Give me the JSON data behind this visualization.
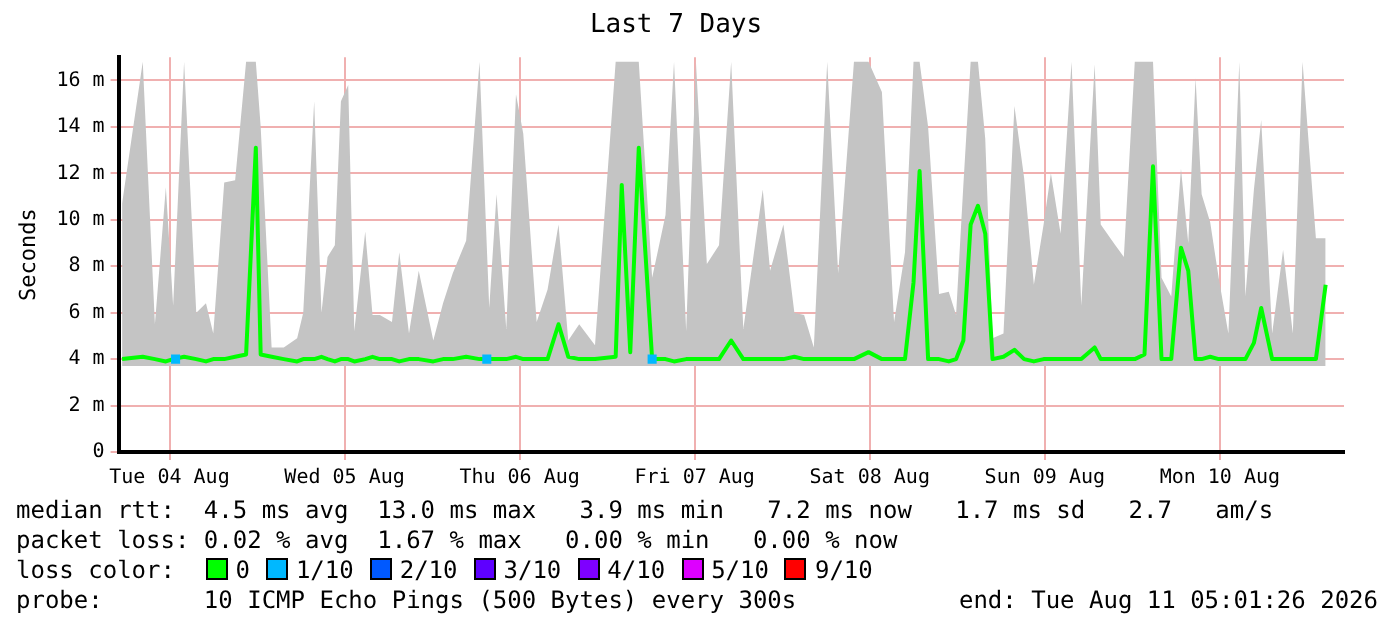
{
  "chart_data": {
    "type": "line",
    "title": "Last 7 Days",
    "ylabel": "Seconds",
    "x": [
      "2026-08-04T05:30",
      "2026-08-04T08:20",
      "2026-08-04T10:00",
      "2026-08-04T11:30",
      "2026-08-04T12:30",
      "2026-08-04T14:00",
      "2026-08-04T15:40",
      "2026-08-04T17:00",
      "2026-08-04T18:00",
      "2026-08-04T19:30",
      "2026-08-04T21:00",
      "2026-08-04T22:30",
      "2026-08-04T23:50",
      "2026-08-05T00:30",
      "2026-08-05T02:00",
      "2026-08-05T03:40",
      "2026-08-05T05:30",
      "2026-08-05T06:20",
      "2026-08-05T07:50",
      "2026-08-05T08:50",
      "2026-08-05T09:40",
      "2026-08-05T10:40",
      "2026-08-05T11:30",
      "2026-08-05T12:30",
      "2026-08-05T13:20",
      "2026-08-05T14:50",
      "2026-08-05T15:50",
      "2026-08-05T16:50",
      "2026-08-05T18:30",
      "2026-08-05T19:30",
      "2026-08-05T20:50",
      "2026-08-05T22:10",
      "2026-08-06T00:10",
      "2026-08-06T01:30",
      "2026-08-06T02:50",
      "2026-08-06T04:40",
      "2026-08-06T06:30",
      "2026-08-06T07:50",
      "2026-08-06T08:50",
      "2026-08-06T10:10",
      "2026-08-06T11:30",
      "2026-08-06T12:30",
      "2026-08-06T14:20",
      "2026-08-06T15:50",
      "2026-08-06T17:20",
      "2026-08-06T18:40",
      "2026-08-06T20:10",
      "2026-08-06T22:20",
      "2026-08-07T01:10",
      "2026-08-07T02:00",
      "2026-08-07T03:10",
      "2026-08-07T04:20",
      "2026-08-07T06:10",
      "2026-08-07T08:00",
      "2026-08-07T09:10",
      "2026-08-07T10:50",
      "2026-08-07T12:10",
      "2026-08-07T13:40",
      "2026-08-07T15:20",
      "2026-08-07T17:00",
      "2026-08-07T18:40",
      "2026-08-07T21:20",
      "2026-08-07T22:20",
      "2026-08-08T00:10",
      "2026-08-08T01:40",
      "2026-08-08T03:00",
      "2026-08-08T04:20",
      "2026-08-08T06:10",
      "2026-08-08T07:40",
      "2026-08-08T09:50",
      "2026-08-08T11:50",
      "2026-08-08T13:40",
      "2026-08-08T15:20",
      "2026-08-08T16:50",
      "2026-08-08T18:00",
      "2026-08-08T18:50",
      "2026-08-08T20:00",
      "2026-08-08T21:30",
      "2026-08-08T22:50",
      "2026-08-08T23:50",
      "2026-08-09T00:50",
      "2026-08-09T01:50",
      "2026-08-09T02:50",
      "2026-08-09T03:50",
      "2026-08-09T04:50",
      "2026-08-09T06:20",
      "2026-08-09T07:50",
      "2026-08-09T09:10",
      "2026-08-09T10:30",
      "2026-08-09T11:50",
      "2026-08-09T12:50",
      "2026-08-09T14:10",
      "2026-08-09T15:40",
      "2026-08-09T17:00",
      "2026-08-09T18:50",
      "2026-08-09T19:40",
      "2026-08-09T21:40",
      "2026-08-09T22:50",
      "2026-08-10T00:20",
      "2026-08-10T01:40",
      "2026-08-10T02:50",
      "2026-08-10T04:00",
      "2026-08-10T05:20",
      "2026-08-10T06:40",
      "2026-08-10T07:40",
      "2026-08-10T08:40",
      "2026-08-10T09:30",
      "2026-08-10T10:40",
      "2026-08-10T11:50",
      "2026-08-10T13:10",
      "2026-08-10T14:40",
      "2026-08-10T15:30",
      "2026-08-10T16:40",
      "2026-08-10T17:40",
      "2026-08-10T19:10",
      "2026-08-10T20:40",
      "2026-08-10T22:00",
      "2026-08-10T23:20",
      "2026-08-11T01:10",
      "2026-08-11T02:30"
    ],
    "series": [
      {
        "name": "0",
        "color": "#00ff00",
        "values": [
          4.0,
          4.1,
          4.0,
          3.9,
          4.0,
          4.1,
          4.0,
          3.9,
          4.0,
          4.0,
          4.1,
          4.2,
          13.1,
          4.2,
          4.1,
          4.0,
          3.9,
          4.0,
          4.0,
          4.1,
          4.0,
          3.9,
          4.0,
          4.0,
          3.9,
          4.0,
          4.1,
          4.0,
          4.0,
          3.9,
          4.0,
          4.0,
          3.9,
          4.0,
          4.0,
          4.1,
          4.0,
          4.0,
          4.0,
          4.0,
          4.1,
          4.0,
          4.0,
          4.0,
          5.5,
          4.1,
          4.0,
          4.0,
          4.1,
          11.5,
          4.3,
          13.1,
          4.0,
          4.0,
          3.9,
          4.0,
          4.0,
          4.0,
          4.0,
          4.8,
          4.0,
          4.0,
          4.0,
          4.0,
          4.1,
          4.0,
          4.0,
          4.0,
          4.0,
          4.0,
          4.3,
          4.0,
          4.0,
          4.0,
          7.3,
          12.1,
          4.0,
          4.0,
          3.9,
          4.0,
          4.8,
          9.8,
          10.6,
          9.4,
          4.0,
          4.1,
          4.4,
          4.0,
          3.9,
          4.0,
          4.0,
          4.0,
          4.0,
          4.0,
          4.5,
          4.0,
          4.0,
          4.0,
          4.0,
          4.2,
          12.3,
          4.0,
          4.0,
          8.8,
          7.8,
          4.0,
          4.0,
          4.1,
          4.0,
          4.0,
          4.0,
          4.0,
          4.7,
          6.2,
          4.0,
          4.0,
          4.0,
          4.0,
          4.0,
          7.2
        ],
        "lower": [
          3.7,
          3.7,
          3.7,
          3.7,
          3.7,
          3.7,
          3.7,
          3.7,
          3.7,
          3.7,
          3.7,
          3.7,
          3.7,
          3.7,
          3.7,
          3.7,
          3.7,
          3.7,
          3.7,
          3.7,
          3.7,
          3.7,
          3.7,
          3.7,
          3.7,
          3.7,
          3.7,
          3.7,
          3.7,
          3.7,
          3.7,
          3.7,
          3.7,
          3.7,
          3.7,
          3.7,
          3.7,
          3.7,
          3.7,
          3.7,
          3.7,
          3.7,
          3.7,
          3.7,
          3.7,
          3.7,
          3.7,
          3.7,
          3.7,
          3.7,
          3.7,
          3.7,
          3.7,
          3.7,
          3.7,
          3.7,
          3.7,
          3.7,
          3.7,
          3.7,
          3.7,
          3.7,
          3.7,
          3.7,
          3.7,
          3.7,
          3.7,
          3.7,
          3.7,
          3.7,
          3.7,
          3.7,
          3.7,
          3.7,
          3.7,
          3.7,
          3.7,
          3.7,
          3.7,
          3.7,
          3.7,
          3.7,
          3.7,
          3.7,
          3.7,
          3.7,
          3.7,
          3.7,
          3.7,
          3.7,
          3.7,
          3.7,
          3.7,
          3.7,
          3.7,
          3.7,
          3.7,
          3.7,
          3.7,
          3.7,
          3.7,
          3.7,
          3.7,
          3.7,
          3.7,
          3.7,
          3.7,
          3.7,
          3.7,
          3.7,
          3.7,
          3.7,
          3.7,
          3.7,
          3.7,
          3.7,
          3.7,
          3.7,
          3.7,
          3.7
        ],
        "upper": [
          10.7,
          16.8,
          5.5,
          11.4,
          6.3,
          16.8,
          6.0,
          6.4,
          5.1,
          11.6,
          11.7,
          16.8,
          16.8,
          14.0,
          4.5,
          4.5,
          4.9,
          6.0,
          15.1,
          6.0,
          8.4,
          8.9,
          15.1,
          15.8,
          5.2,
          9.5,
          5.9,
          5.9,
          5.6,
          8.6,
          5.1,
          7.8,
          4.8,
          6.4,
          7.7,
          9.1,
          16.8,
          6.2,
          11.1,
          5.3,
          15.4,
          13.7,
          5.6,
          7.0,
          9.8,
          4.8,
          5.5,
          4.6,
          16.8,
          16.8,
          16.8,
          16.8,
          7.5,
          10.2,
          16.8,
          5.2,
          16.8,
          8.1,
          8.9,
          16.8,
          5.3,
          11.3,
          7.8,
          9.8,
          6.0,
          5.9,
          4.5,
          16.8,
          7.7,
          16.8,
          16.8,
          15.5,
          5.6,
          8.6,
          16.8,
          16.8,
          14.0,
          6.8,
          6.9,
          5.9,
          11.5,
          16.8,
          16.8,
          13.5,
          4.9,
          5.1,
          14.9,
          11.8,
          7.2,
          9.8,
          12.0,
          9.4,
          16.8,
          6.3,
          16.7,
          9.8,
          8.9,
          8.4,
          16.8,
          16.8,
          16.8,
          7.5,
          6.7,
          12.2,
          9.0,
          16.1,
          11.1,
          9.9,
          7.5,
          5.1,
          16.8,
          6.7,
          11.3,
          14.3,
          5.1,
          8.7,
          5.1,
          16.8,
          9.2,
          9.2
        ]
      },
      {
        "name": "1/10",
        "color": "#00b8ff",
        "type": "scatter",
        "marker": "square",
        "x": [
          "2026-08-04T12:50",
          "2026-08-06T07:30",
          "2026-08-07T06:10"
        ],
        "values": [
          4.0,
          4.0,
          4.0
        ]
      },
      {
        "name": "2/10",
        "color": "#0059ff",
        "values": [
          null,
          null,
          null,
          null,
          null,
          null,
          null,
          null,
          null,
          null,
          null,
          null,
          null,
          null,
          null,
          null,
          null,
          null,
          null,
          null,
          null,
          null,
          null,
          null,
          null,
          null,
          null,
          null,
          null,
          null,
          null,
          null,
          null,
          null,
          null,
          null,
          null,
          null,
          null,
          null,
          null,
          null,
          null,
          null,
          null,
          null,
          null,
          null,
          null,
          null,
          null,
          null,
          null,
          null,
          null,
          null,
          null,
          null,
          null,
          null,
          null,
          null,
          null,
          null,
          null,
          null,
          null,
          null,
          null,
          null,
          null,
          null,
          null,
          null,
          null,
          null,
          null,
          null,
          null,
          null,
          null,
          null,
          null,
          null,
          null,
          null,
          null,
          null,
          null,
          null,
          null,
          null,
          null,
          null,
          null,
          null,
          null,
          null,
          null,
          null,
          null,
          null,
          null,
          null,
          null,
          null,
          null,
          null,
          null,
          null,
          null,
          null,
          null,
          null,
          null,
          null,
          null,
          null,
          null,
          null
        ]
      },
      {
        "name": "3/10",
        "color": "#5e00ff",
        "values": [
          null,
          null,
          null,
          null,
          null,
          null,
          null,
          null,
          null,
          null,
          null,
          null,
          null,
          null,
          null,
          null,
          null,
          null,
          null,
          null,
          null,
          null,
          null,
          null,
          null,
          null,
          null,
          null,
          null,
          null,
          null,
          null,
          null,
          null,
          null,
          null,
          null,
          null,
          null,
          null,
          null,
          null,
          null,
          null,
          null,
          null,
          null,
          null,
          null,
          null,
          null,
          null,
          null,
          null,
          null,
          null,
          null,
          null,
          null,
          null,
          null,
          null,
          null,
          null,
          null,
          null,
          null,
          null,
          null,
          null,
          null,
          null,
          null,
          null,
          null,
          null,
          null,
          null,
          null,
          null,
          null,
          null,
          null,
          null,
          null,
          null,
          null,
          null,
          null,
          null,
          null,
          null,
          null,
          null,
          null,
          null,
          null,
          null,
          null,
          null,
          null,
          null,
          null,
          null,
          null,
          null,
          null,
          null,
          null,
          null,
          null,
          null,
          null,
          null,
          null,
          null,
          null,
          null,
          null,
          null
        ]
      },
      {
        "name": "4/10",
        "color": "#7e00ff",
        "values": [
          null,
          null,
          null,
          null,
          null,
          null,
          null,
          null,
          null,
          null,
          null,
          null,
          null,
          null,
          null,
          null,
          null,
          null,
          null,
          null,
          null,
          null,
          null,
          null,
          null,
          null,
          null,
          null,
          null,
          null,
          null,
          null,
          null,
          null,
          null,
          null,
          null,
          null,
          null,
          null,
          null,
          null,
          null,
          null,
          null,
          null,
          null,
          null,
          null,
          null,
          null,
          null,
          null,
          null,
          null,
          null,
          null,
          null,
          null,
          null,
          null,
          null,
          null,
          null,
          null,
          null,
          null,
          null,
          null,
          null,
          null,
          null,
          null,
          null,
          null,
          null,
          null,
          null,
          null,
          null,
          null,
          null,
          null,
          null,
          null,
          null,
          null,
          null,
          null,
          null,
          null,
          null,
          null,
          null,
          null,
          null,
          null,
          null,
          null,
          null,
          null,
          null,
          null,
          null,
          null,
          null,
          null,
          null,
          null,
          null,
          null,
          null,
          null,
          null,
          null,
          null,
          null,
          null,
          null,
          null
        ]
      },
      {
        "name": "5/10",
        "color": "#dd00ff",
        "values": [
          null,
          null,
          null,
          null,
          null,
          null,
          null,
          null,
          null,
          null,
          null,
          null,
          null,
          null,
          null,
          null,
          null,
          null,
          null,
          null,
          null,
          null,
          null,
          null,
          null,
          null,
          null,
          null,
          null,
          null,
          null,
          null,
          null,
          null,
          null,
          null,
          null,
          null,
          null,
          null,
          null,
          null,
          null,
          null,
          null,
          null,
          null,
          null,
          null,
          null,
          null,
          null,
          null,
          null,
          null,
          null,
          null,
          null,
          null,
          null,
          null,
          null,
          null,
          null,
          null,
          null,
          null,
          null,
          null,
          null,
          null,
          null,
          null,
          null,
          null,
          null,
          null,
          null,
          null,
          null,
          null,
          null,
          null,
          null,
          null,
          null,
          null,
          null,
          null,
          null,
          null,
          null,
          null,
          null,
          null,
          null,
          null,
          null,
          null,
          null,
          null,
          null,
          null,
          null,
          null,
          null,
          null,
          null,
          null,
          null,
          null,
          null,
          null,
          null,
          null,
          null,
          null,
          null,
          null,
          null
        ]
      },
      {
        "name": "9/10",
        "color": "#ff0000",
        "values": [
          null,
          null,
          null,
          null,
          null,
          null,
          null,
          null,
          null,
          null,
          null,
          null,
          null,
          null,
          null,
          null,
          null,
          null,
          null,
          null,
          null,
          null,
          null,
          null,
          null,
          null,
          null,
          null,
          null,
          null,
          null,
          null,
          null,
          null,
          null,
          null,
          null,
          null,
          null,
          null,
          null,
          null,
          null,
          null,
          null,
          null,
          null,
          null,
          null,
          null,
          null,
          null,
          null,
          null,
          null,
          null,
          null,
          null,
          null,
          null,
          null,
          null,
          null,
          null,
          null,
          null,
          null,
          null,
          null,
          null,
          null,
          null,
          null,
          null,
          null,
          null,
          null,
          null,
          null,
          null,
          null,
          null,
          null,
          null,
          null,
          null,
          null,
          null,
          null,
          null,
          null,
          null,
          null,
          null,
          null,
          null,
          null,
          null,
          null,
          null,
          null,
          null,
          null,
          null,
          null,
          null,
          null,
          null,
          null,
          null,
          null,
          null,
          null,
          null,
          null,
          null,
          null,
          null,
          null,
          null
        ]
      }
    ],
    "marker": "none",
    "legend": "bottom",
    "legend_title": "loss color:",
    "xlim": [
      "2026-08-04T05:01",
      "2026-08-11T05:01"
    ],
    "xticks": [
      {
        "value": "2026-08-04T12:00",
        "label": "Tue 04 Aug"
      },
      {
        "value": "2026-08-05T12:00",
        "label": "Wed 05 Aug"
      },
      {
        "value": "2026-08-06T12:00",
        "label": "Thu 06 Aug"
      },
      {
        "value": "2026-08-07T12:00",
        "label": "Fri 07 Aug"
      },
      {
        "value": "2026-08-08T12:00",
        "label": "Sat 08 Aug"
      },
      {
        "value": "2026-08-09T12:00",
        "label": "Sun 09 Aug"
      },
      {
        "value": "2026-08-10T12:00",
        "label": "Mon 10 Aug"
      }
    ],
    "ylim": [
      0,
      17
    ],
    "yticks": [
      0,
      {
        "value": 2,
        "label": "2 m"
      },
      {
        "value": 4,
        "label": "4 m"
      },
      {
        "value": 6,
        "label": "6 m"
      },
      {
        "value": 8,
        "label": "8 m"
      },
      {
        "value": 10,
        "label": "10 m"
      },
      {
        "value": 12,
        "label": "12 m"
      },
      {
        "value": 14,
        "label": "14 m"
      },
      {
        "value": 16,
        "label": "16 m"
      }
    ],
    "grid": true,
    "annotations": [
      "median rtt:  4.5 ms avg  13.0 ms max   3.9 ms min   7.2 ms now   1.7 ms sd   2.7   am/s",
      "packet loss: 0.02 % avg  1.67 % max   0.00 % min   0.00 % now",
      "probe:       10 ICMP Echo Pings (500 Bytes) every 300s",
      "end: Tue Aug 11 05:01:26 2026"
    ]
  }
}
